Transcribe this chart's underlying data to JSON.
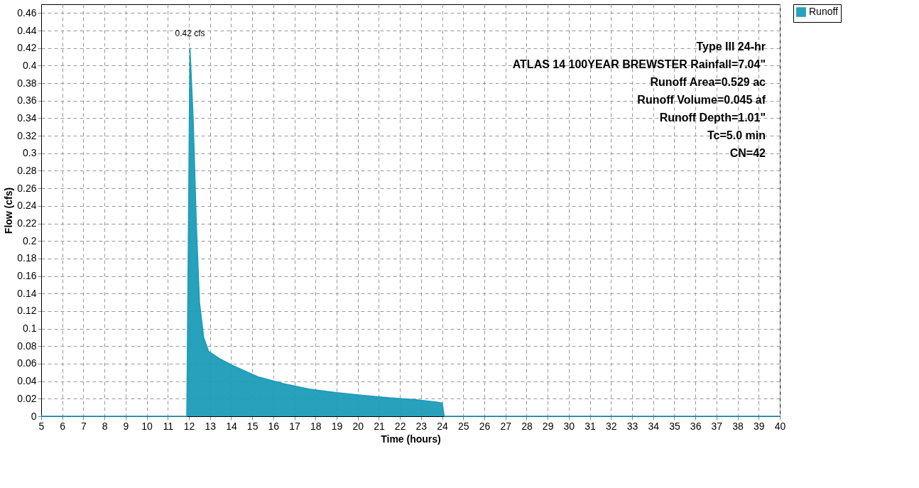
{
  "chart_data": {
    "type": "area",
    "xlabel": "Time  (hours)",
    "ylabel": "Flow  (cfs)",
    "x": [
      5,
      11.9,
      12.05,
      12.2,
      12.35,
      12.5,
      12.7,
      12.93,
      13.5,
      14.16,
      15.27,
      16.5,
      17.7,
      19,
      20.2,
      21.5,
      22.7,
      23.8,
      24.0,
      24.1,
      30,
      40
    ],
    "series": [
      {
        "name": "Runoff",
        "color": "#1b9cb8",
        "values": [
          0,
          0,
          0.42,
          0.34,
          0.22,
          0.13,
          0.09,
          0.074,
          0.065,
          0.057,
          0.045,
          0.037,
          0.031,
          0.027,
          0.024,
          0.021,
          0.019,
          0.016,
          0.015,
          0,
          0,
          0
        ]
      }
    ],
    "xlim": [
      5,
      40
    ],
    "ylim": [
      0,
      0.47
    ],
    "xticks": [
      5,
      6,
      7,
      8,
      9,
      10,
      11,
      12,
      13,
      14,
      15,
      16,
      17,
      18,
      19,
      20,
      21,
      22,
      23,
      24,
      25,
      26,
      27,
      28,
      29,
      30,
      31,
      32,
      33,
      34,
      35,
      36,
      37,
      38,
      39,
      40
    ],
    "yticks": [
      0,
      0.02,
      0.04,
      0.06,
      0.08,
      0.1,
      0.12,
      0.14,
      0.16,
      0.18,
      0.2,
      0.22,
      0.24,
      0.26,
      0.28,
      0.3,
      0.32,
      0.34,
      0.36,
      0.38,
      0.4,
      0.42,
      0.44,
      0.46
    ],
    "grid": true,
    "legend": "top right",
    "annotations": [
      {
        "text": "0.42 cfs",
        "x": 12.05,
        "y": 0.42
      },
      "Type III 24-hr",
      "ATLAS 14 100YEAR BREWSTER Rainfall=7.04\"",
      "Runoff Area=0.529 ac",
      "Runoff Volume=0.045 af",
      "Runoff Depth=1.01\"",
      "Tc=5.0 min",
      "CN=42"
    ]
  }
}
